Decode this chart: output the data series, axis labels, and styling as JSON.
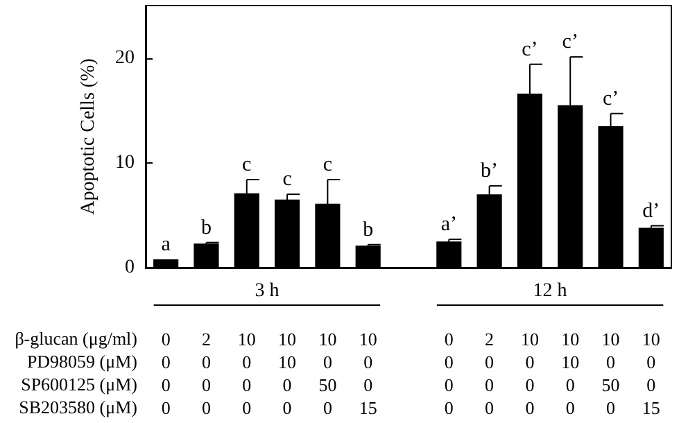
{
  "chart_data": {
    "type": "bar",
    "ylabel": "Apoptotic Cells (%)",
    "categories": [
      "0\n0\n0\n0",
      "2\n0\n0\n0",
      "10\n0\n0\n0",
      "10\n10\n0\n0",
      "10\n0\n50\n0",
      "10\n0\n0\n15",
      null,
      "0\n0\n0\n0",
      "2\n0\n0\n0",
      "10\n0\n0\n0",
      "10\n10\n0\n0",
      "10\n0\n50\n0",
      "10\n0\n0\n15"
    ],
    "values": [
      0.8,
      2.3,
      7.1,
      6.5,
      6.1,
      2.1,
      null,
      2.5,
      7.0,
      16.6,
      15.5,
      13.5,
      3.8
    ],
    "errors": [
      null,
      0.1,
      1.3,
      0.5,
      2.3,
      0.1,
      null,
      0.2,
      0.8,
      2.8,
      4.6,
      1.2,
      0.2
    ],
    "value_labels": [
      "a",
      "b",
      "c",
      "c",
      "c",
      "b",
      null,
      "a’",
      "b’",
      "c’",
      "c’",
      "c’",
      "d’"
    ],
    "color": "#000000",
    "ylim": [
      0,
      25
    ],
    "yticks": [
      0,
      10,
      20
    ],
    "grid": false,
    "annotations": [
      "3 h",
      "12 h",
      "β-glucan (μg/ml)",
      "PD98059 (μM)",
      "SP600125 (μM)",
      "SB203580 (μM)"
    ]
  }
}
